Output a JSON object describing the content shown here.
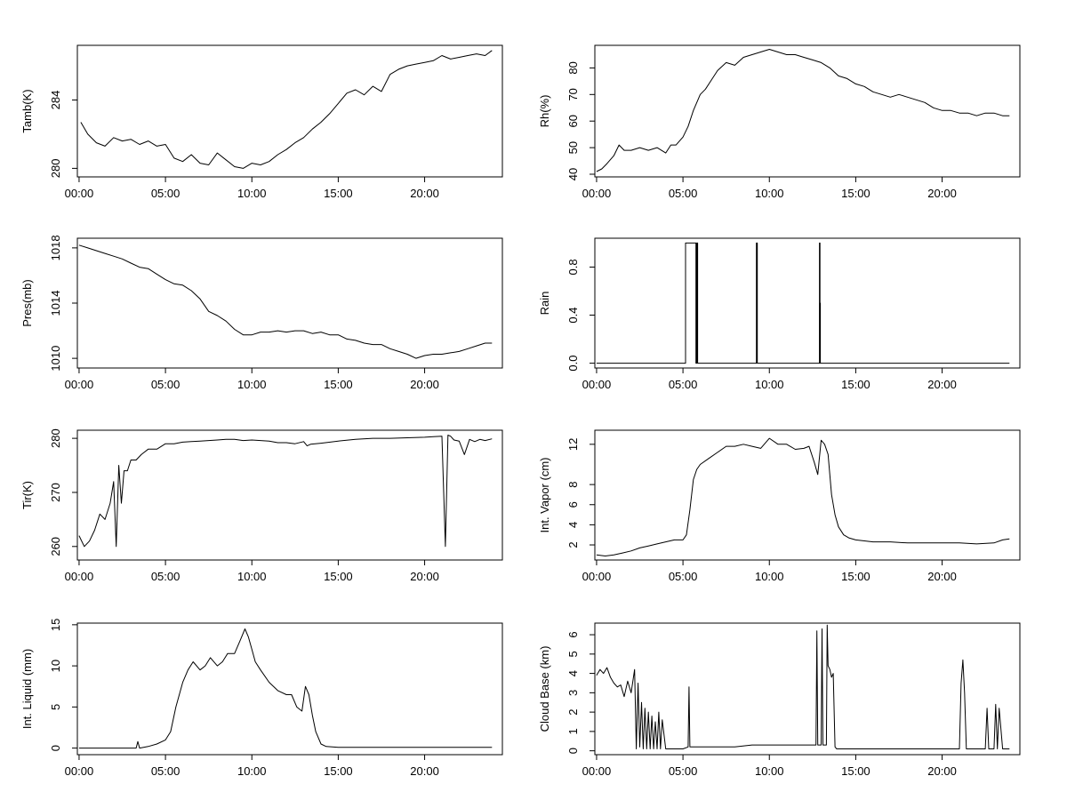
{
  "chart_data": [
    {
      "type": "line",
      "ylabel": "Tamb(K)",
      "xlim": [
        -0.1,
        24.5
      ],
      "ylim": [
        279.5,
        287.2
      ],
      "x_ticks": [
        "00:00",
        "05:00",
        "10:00",
        "15:00",
        "20:00"
      ],
      "y_ticks": [
        "280",
        "284"
      ],
      "series": [
        {
          "x": [
            0.1,
            0.5,
            1.0,
            1.5,
            2.0,
            2.5,
            3.0,
            3.5,
            4.0,
            4.5,
            5.0,
            5.5,
            6.0,
            6.5,
            7.0,
            7.5,
            8.0,
            8.5,
            9.0,
            9.5,
            10.0,
            10.5,
            11.0,
            11.5,
            12.0,
            12.5,
            13.0,
            13.5,
            14.0,
            14.5,
            15.0,
            15.5,
            16.0,
            16.5,
            17.0,
            17.5,
            18.0,
            18.5,
            19.0,
            19.5,
            20.0,
            20.5,
            21.0,
            21.5,
            22.0,
            22.5,
            23.0,
            23.5,
            23.9
          ],
          "y": [
            282.7,
            282.0,
            281.5,
            281.3,
            281.8,
            281.6,
            281.7,
            281.4,
            281.6,
            281.3,
            281.4,
            280.6,
            280.4,
            280.8,
            280.3,
            280.2,
            280.9,
            280.5,
            280.1,
            280.0,
            280.3,
            280.2,
            280.4,
            280.8,
            281.1,
            281.5,
            281.8,
            282.3,
            282.7,
            283.2,
            283.8,
            284.4,
            284.6,
            284.3,
            284.8,
            284.5,
            285.5,
            285.8,
            286.0,
            286.1,
            286.2,
            286.3,
            286.6,
            286.4,
            286.5,
            286.6,
            286.7,
            286.6,
            286.9
          ]
        }
      ]
    },
    {
      "type": "line",
      "ylabel": "Rh(%)",
      "xlim": [
        -0.1,
        24.5
      ],
      "ylim": [
        39,
        88.5
      ],
      "x_ticks": [
        "00:00",
        "05:00",
        "10:00",
        "15:00",
        "20:00"
      ],
      "y_ticks": [
        "40",
        "50",
        "60",
        "70",
        "80"
      ],
      "series": [
        {
          "x": [
            0.0,
            0.3,
            0.6,
            1.0,
            1.3,
            1.6,
            2.0,
            2.5,
            3.0,
            3.5,
            4.0,
            4.3,
            4.6,
            5.0,
            5.3,
            5.6,
            6.0,
            6.3,
            6.6,
            7.0,
            7.5,
            8.0,
            8.5,
            9.0,
            9.5,
            10.0,
            10.5,
            11.0,
            11.5,
            12.0,
            12.5,
            13.0,
            13.5,
            14.0,
            14.5,
            15.0,
            15.5,
            16.0,
            16.5,
            17.0,
            17.5,
            18.0,
            18.5,
            19.0,
            19.5,
            20.0,
            20.5,
            21.0,
            21.5,
            22.0,
            22.5,
            23.0,
            23.5,
            23.9
          ],
          "y": [
            41,
            42,
            44,
            47,
            51,
            49,
            49,
            50,
            49,
            50,
            48,
            51,
            51,
            54,
            58,
            64,
            70,
            72,
            75,
            79,
            82,
            81,
            84,
            85,
            86,
            87,
            86,
            85,
            85,
            84,
            83,
            82,
            80,
            77,
            76,
            74,
            73,
            71,
            70,
            69,
            70,
            69,
            68,
            67,
            65,
            64,
            64,
            63,
            63,
            62,
            63,
            63,
            62,
            62
          ]
        }
      ]
    },
    {
      "type": "line",
      "ylabel": "Pres(mb)",
      "xlim": [
        -0.1,
        24.5
      ],
      "ylim": [
        1009.3,
        1018.7
      ],
      "x_ticks": [
        "00:00",
        "05:00",
        "10:00",
        "15:00",
        "20:00"
      ],
      "y_ticks": [
        "1010",
        "1014",
        "1018"
      ],
      "series": [
        {
          "x": [
            0.0,
            0.5,
            1.0,
            1.5,
            2.0,
            2.5,
            3.0,
            3.5,
            4.0,
            4.5,
            5.0,
            5.5,
            6.0,
            6.5,
            7.0,
            7.5,
            8.0,
            8.5,
            9.0,
            9.5,
            10.0,
            10.5,
            11.0,
            11.5,
            12.0,
            12.5,
            13.0,
            13.5,
            14.0,
            14.5,
            15.0,
            15.5,
            16.0,
            16.5,
            17.0,
            17.5,
            18.0,
            18.5,
            19.0,
            19.5,
            20.0,
            20.5,
            21.0,
            21.5,
            22.0,
            22.5,
            23.0,
            23.5,
            23.9
          ],
          "y": [
            1018.2,
            1018.0,
            1017.8,
            1017.6,
            1017.4,
            1017.2,
            1016.9,
            1016.6,
            1016.5,
            1016.1,
            1015.7,
            1015.4,
            1015.3,
            1014.9,
            1014.3,
            1013.4,
            1013.1,
            1012.7,
            1012.1,
            1011.7,
            1011.7,
            1011.9,
            1011.9,
            1012.0,
            1011.9,
            1012.0,
            1012.0,
            1011.8,
            1011.9,
            1011.7,
            1011.7,
            1011.4,
            1011.3,
            1011.1,
            1011.0,
            1011.0,
            1010.7,
            1010.5,
            1010.3,
            1010.0,
            1010.2,
            1010.3,
            1010.3,
            1010.4,
            1010.5,
            1010.7,
            1010.9,
            1011.1,
            1011.1
          ]
        }
      ]
    },
    {
      "type": "line",
      "ylabel": "Rain",
      "xlim": [
        -0.1,
        24.5
      ],
      "ylim": [
        -0.04,
        1.04
      ],
      "x_ticks": [
        "00:00",
        "05:00",
        "10:00",
        "15:00",
        "20:00"
      ],
      "y_ticks": [
        "0.0",
        "0.4",
        "0.8"
      ],
      "series": [
        {
          "x": [
            0.0,
            5.15,
            5.15,
            5.75,
            5.75,
            5.8,
            5.8,
            5.85,
            5.85,
            9.25,
            9.25,
            9.3,
            9.3,
            12.9,
            12.9,
            12.93,
            12.93,
            12.95,
            12.95,
            13.0,
            13.0,
            23.9
          ],
          "y": [
            0,
            0,
            1,
            1,
            0,
            0,
            1,
            1,
            0,
            0,
            1,
            1,
            0,
            0,
            1,
            1,
            0.5,
            0.5,
            0,
            0,
            0,
            0
          ]
        }
      ]
    },
    {
      "type": "line",
      "ylabel": "Tir(K)",
      "xlim": [
        -0.1,
        24.5
      ],
      "ylim": [
        257.5,
        281.5
      ],
      "x_ticks": [
        "00:00",
        "05:00",
        "10:00",
        "15:00",
        "20:00"
      ],
      "y_ticks": [
        "260",
        "270",
        "280"
      ],
      "series": [
        {
          "x": [
            0.0,
            0.3,
            0.6,
            0.9,
            1.2,
            1.5,
            1.8,
            2.0,
            2.15,
            2.3,
            2.45,
            2.6,
            2.8,
            3.0,
            3.3,
            3.6,
            4.0,
            4.5,
            5.0,
            5.5,
            6.0,
            6.5,
            7.0,
            7.5,
            8.0,
            8.5,
            9.0,
            9.5,
            10.0,
            10.5,
            11.0,
            11.5,
            12.0,
            12.5,
            13.0,
            13.2,
            13.4,
            14.0,
            15.0,
            16.0,
            17.0,
            18.0,
            19.0,
            20.0,
            20.5,
            21.0,
            21.2,
            21.35,
            21.5,
            21.7,
            22.0,
            22.3,
            22.6,
            22.9,
            23.2,
            23.5,
            23.9
          ],
          "y": [
            262,
            260,
            261,
            263,
            266,
            265,
            268,
            272,
            260,
            275,
            268,
            274,
            274,
            276,
            276,
            277,
            278,
            278,
            279,
            279,
            279.3,
            279.4,
            279.5,
            279.6,
            279.7,
            279.8,
            279.8,
            279.6,
            279.7,
            279.6,
            279.5,
            279.2,
            279.2,
            279.0,
            279.4,
            278.6,
            278.9,
            279.1,
            279.5,
            279.8,
            280.0,
            280.0,
            280.1,
            280.2,
            280.3,
            280.4,
            260,
            280.6,
            280.4,
            279.7,
            279.5,
            277,
            279.8,
            279.4,
            279.8,
            279.6,
            279.9
          ]
        }
      ]
    },
    {
      "type": "line",
      "ylabel": "Int. Vapor (cm)",
      "xlim": [
        -0.1,
        24.5
      ],
      "ylim": [
        0.5,
        13.4
      ],
      "x_ticks": [
        "00:00",
        "05:00",
        "10:00",
        "15:00",
        "20:00"
      ],
      "y_ticks": [
        "2",
        "4",
        "6",
        "8",
        "12"
      ],
      "series": [
        {
          "x": [
            0.0,
            0.5,
            1.0,
            1.5,
            2.0,
            2.5,
            3.0,
            3.5,
            4.0,
            4.5,
            5.0,
            5.2,
            5.4,
            5.6,
            5.8,
            6.0,
            6.5,
            7.0,
            7.5,
            8.0,
            8.5,
            9.0,
            9.5,
            10.0,
            10.5,
            11.0,
            11.5,
            12.0,
            12.3,
            12.6,
            12.8,
            13.0,
            13.2,
            13.4,
            13.6,
            13.8,
            14.0,
            14.3,
            14.6,
            15.0,
            16.0,
            17.0,
            18.0,
            19.0,
            20.0,
            21.0,
            22.0,
            23.0,
            23.5,
            23.9
          ],
          "y": [
            1.0,
            0.9,
            1.0,
            1.2,
            1.4,
            1.7,
            1.9,
            2.1,
            2.3,
            2.5,
            2.5,
            3.0,
            5.5,
            8.5,
            9.5,
            10.0,
            10.6,
            11.2,
            11.8,
            11.8,
            12.0,
            11.8,
            11.6,
            12.6,
            12.0,
            12.0,
            11.5,
            11.6,
            11.8,
            10.2,
            9.0,
            12.4,
            12.0,
            11.0,
            7.0,
            5.0,
            3.8,
            3.0,
            2.7,
            2.5,
            2.3,
            2.3,
            2.2,
            2.2,
            2.2,
            2.2,
            2.1,
            2.2,
            2.5,
            2.6
          ]
        }
      ]
    },
    {
      "type": "line",
      "ylabel": "Int. Liquid (mm)",
      "xlim": [
        -0.1,
        24.5
      ],
      "ylim": [
        -0.8,
        15.2
      ],
      "x_ticks": [
        "00:00",
        "05:00",
        "10:00",
        "15:00",
        "20:00"
      ],
      "y_ticks": [
        "0",
        "5",
        "10",
        "15"
      ],
      "series": [
        {
          "x": [
            0.0,
            1.0,
            2.0,
            3.0,
            3.3,
            3.4,
            3.5,
            4.0,
            4.5,
            5.0,
            5.3,
            5.6,
            6.0,
            6.3,
            6.6,
            7.0,
            7.3,
            7.6,
            8.0,
            8.3,
            8.6,
            9.0,
            9.3,
            9.6,
            9.8,
            10.0,
            10.2,
            10.5,
            11.0,
            11.5,
            12.0,
            12.3,
            12.6,
            12.9,
            13.1,
            13.3,
            13.5,
            13.7,
            14.0,
            14.3,
            15.0,
            16.0,
            17.0,
            18.0,
            19.0,
            20.0,
            21.0,
            22.0,
            23.0,
            23.9
          ],
          "y": [
            0,
            0,
            0,
            0,
            0,
            0.8,
            0,
            0.2,
            0.5,
            1.0,
            2.0,
            5.0,
            8.0,
            9.5,
            10.5,
            9.5,
            10.0,
            11.0,
            10.0,
            10.5,
            11.5,
            11.5,
            13.0,
            14.5,
            13.5,
            12.0,
            10.5,
            9.5,
            8.0,
            7.0,
            6.5,
            6.5,
            5.0,
            4.5,
            7.5,
            6.5,
            4.0,
            2.0,
            0.5,
            0.2,
            0.1,
            0.1,
            0.1,
            0.1,
            0.1,
            0.1,
            0.1,
            0.1,
            0.1,
            0.1
          ]
        }
      ]
    },
    {
      "type": "line",
      "ylabel": "Cloud Base (km)",
      "xlim": [
        -0.1,
        24.5
      ],
      "ylim": [
        -0.2,
        6.6
      ],
      "x_ticks": [
        "00:00",
        "05:00",
        "10:00",
        "15:00",
        "20:00"
      ],
      "y_ticks": [
        "0",
        "1",
        "2",
        "3",
        "4",
        "5",
        "6"
      ],
      "series": [
        {
          "x": [
            0.0,
            0.2,
            0.4,
            0.6,
            0.8,
            1.0,
            1.2,
            1.4,
            1.6,
            1.8,
            2.0,
            2.2,
            2.3,
            2.4,
            2.5,
            2.6,
            2.7,
            2.8,
            2.9,
            3.0,
            3.1,
            3.2,
            3.3,
            3.4,
            3.5,
            3.6,
            3.7,
            3.8,
            4.0,
            4.5,
            5.0,
            5.3,
            5.35,
            5.4,
            6.0,
            7.0,
            8.0,
            9.0,
            10.0,
            11.0,
            12.0,
            12.7,
            12.75,
            12.8,
            13.0,
            13.05,
            13.1,
            13.3,
            13.35,
            13.4,
            13.5,
            13.6,
            13.7,
            13.8,
            13.9,
            14.0,
            15.0,
            16.0,
            17.0,
            18.0,
            19.0,
            20.0,
            21.0,
            21.1,
            21.2,
            21.3,
            21.4,
            22.0,
            22.5,
            22.6,
            22.7,
            23.0,
            23.1,
            23.2,
            23.3,
            23.5,
            23.9
          ],
          "y": [
            3.9,
            4.2,
            4.0,
            4.3,
            3.8,
            3.5,
            3.3,
            3.4,
            2.8,
            3.6,
            3.0,
            4.2,
            0.1,
            3.5,
            0.2,
            2.5,
            0.1,
            2.2,
            0.1,
            2.0,
            0.1,
            1.8,
            0.1,
            1.5,
            0.1,
            2.0,
            0.1,
            1.6,
            0.1,
            0.1,
            0.1,
            0.2,
            3.3,
            0.2,
            0.2,
            0.2,
            0.2,
            0.3,
            0.3,
            0.3,
            0.3,
            0.3,
            6.2,
            0.3,
            0.3,
            6.3,
            0.3,
            0.3,
            6.5,
            4.4,
            4.2,
            3.8,
            4.0,
            0.2,
            0.1,
            0.1,
            0.1,
            0.1,
            0.1,
            0.1,
            0.1,
            0.1,
            0.1,
            3.5,
            4.7,
            3.0,
            0.1,
            0.1,
            0.1,
            2.2,
            0.1,
            0.1,
            2.4,
            0.1,
            2.2,
            0.1,
            0.1
          ]
        }
      ]
    }
  ]
}
